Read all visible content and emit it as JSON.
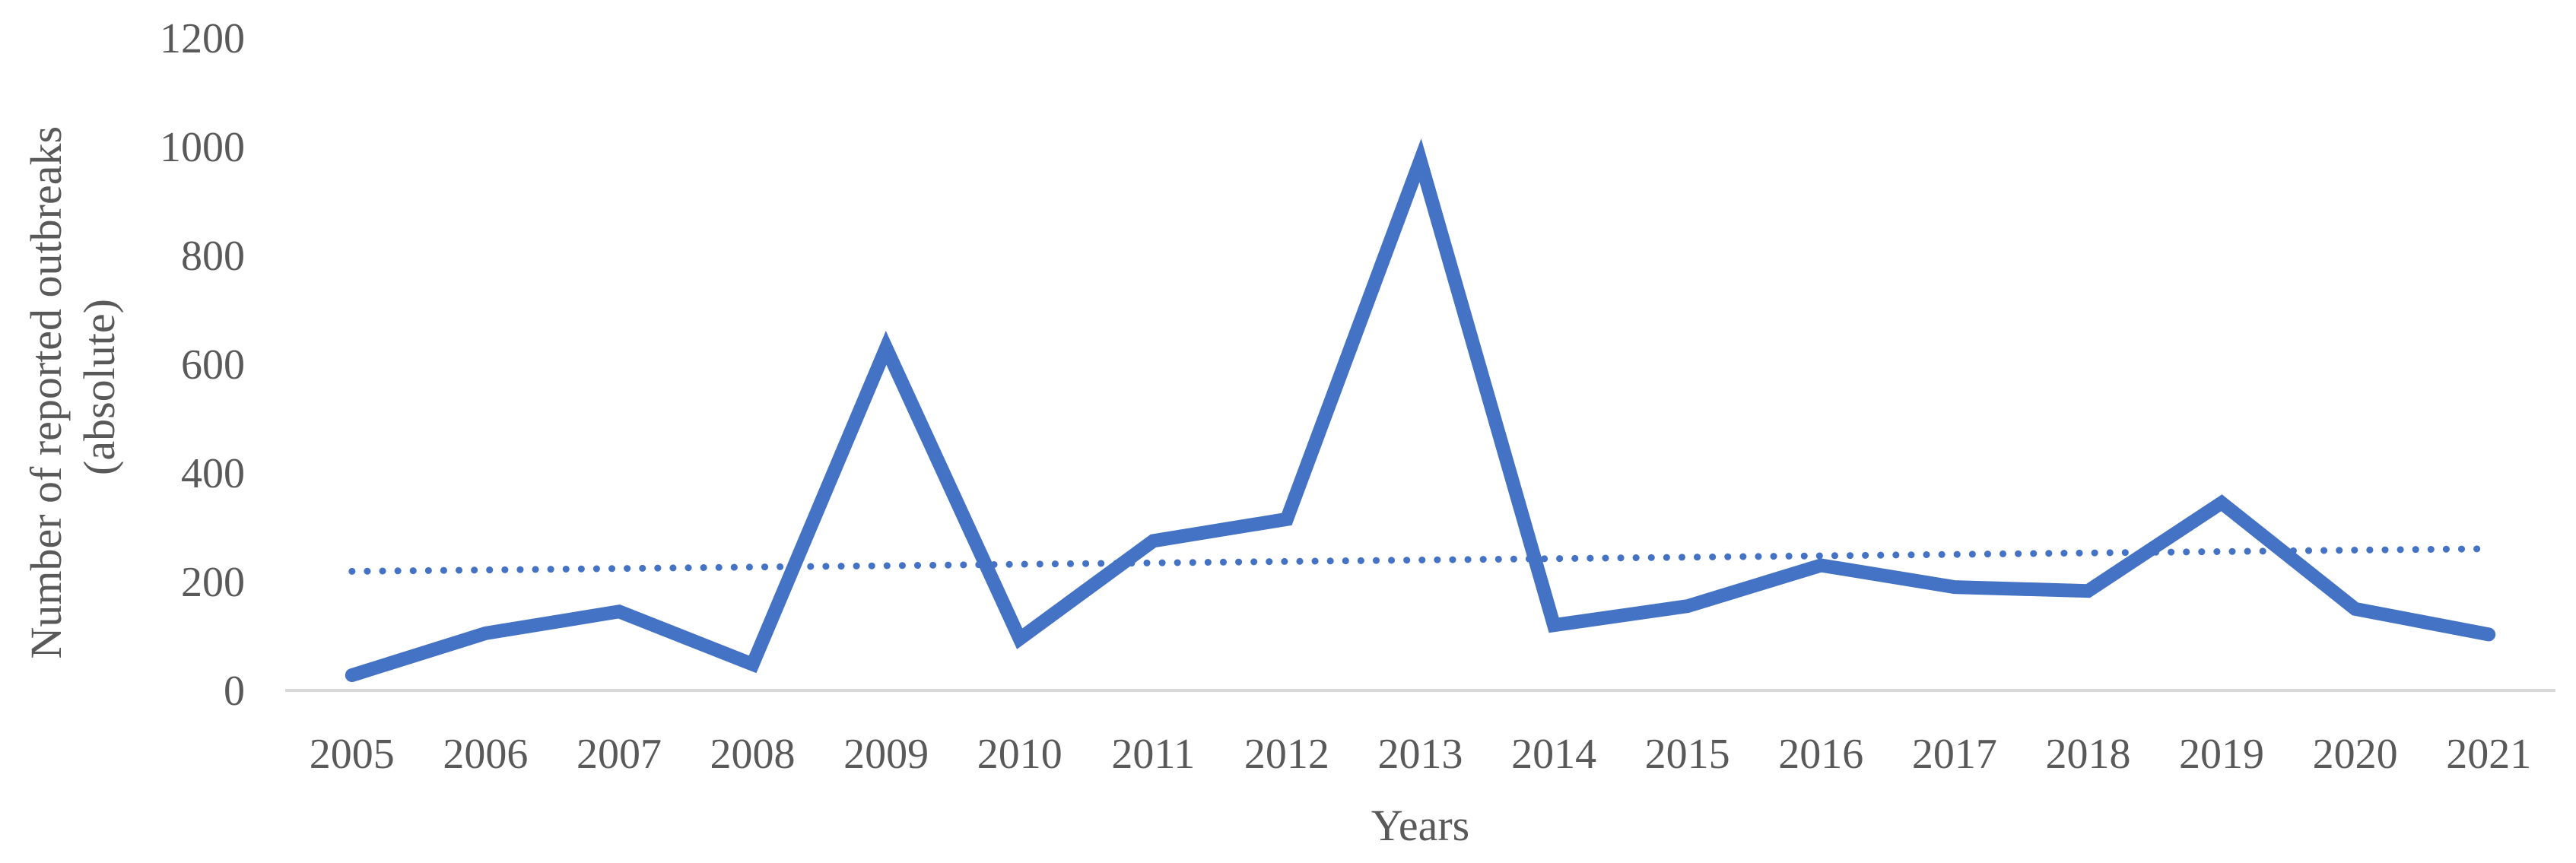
{
  "chart_data": {
    "type": "line",
    "title": "",
    "xlabel": "Years",
    "ylabel": "Number of reported outbreaks",
    "ylabel_line2": "(absolute)",
    "ylim": [
      0,
      1200
    ],
    "yticks": [
      0,
      200,
      400,
      600,
      800,
      1000,
      1200
    ],
    "grid": false,
    "legend": "none",
    "categories": [
      "2005",
      "2006",
      "2007",
      "2008",
      "2009",
      "2010",
      "2011",
      "2012",
      "2013",
      "2014",
      "2015",
      "2016",
      "2017",
      "2018",
      "2019",
      "2020",
      "2021"
    ],
    "series": [
      {
        "values": [
          28,
          105,
          145,
          48,
          630,
          95,
          275,
          315,
          975,
          120,
          155,
          230,
          190,
          183,
          345,
          150,
          103
        ],
        "color": "#4472C4",
        "style": "solid"
      },
      {
        "values": [
          219,
          221.6,
          224.2,
          226.8,
          229.4,
          232,
          234.6,
          237.2,
          239.8,
          242.4,
          245,
          247.6,
          250.2,
          252.8,
          255.4,
          258,
          260.6
        ],
        "color": "#4472C4",
        "style": "dotted",
        "trendline": "linear"
      }
    ],
    "axis_color": "#D9D9D9",
    "text_color": "#595959"
  }
}
